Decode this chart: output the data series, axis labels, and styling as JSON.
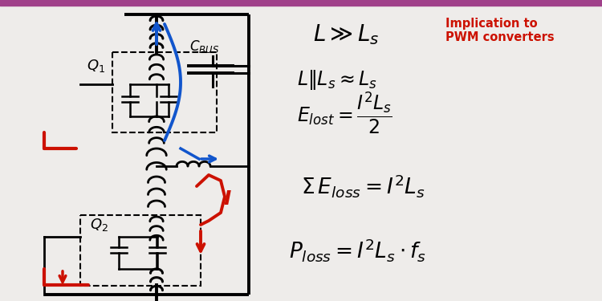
{
  "bg_color": "#eeecea",
  "top_bar_color": "#a0408a",
  "implication_text": "Implication to\nPWM converters",
  "implication_color": "#cc1100",
  "fig_width": 7.5,
  "fig_height": 3.75,
  "dpi": 100
}
